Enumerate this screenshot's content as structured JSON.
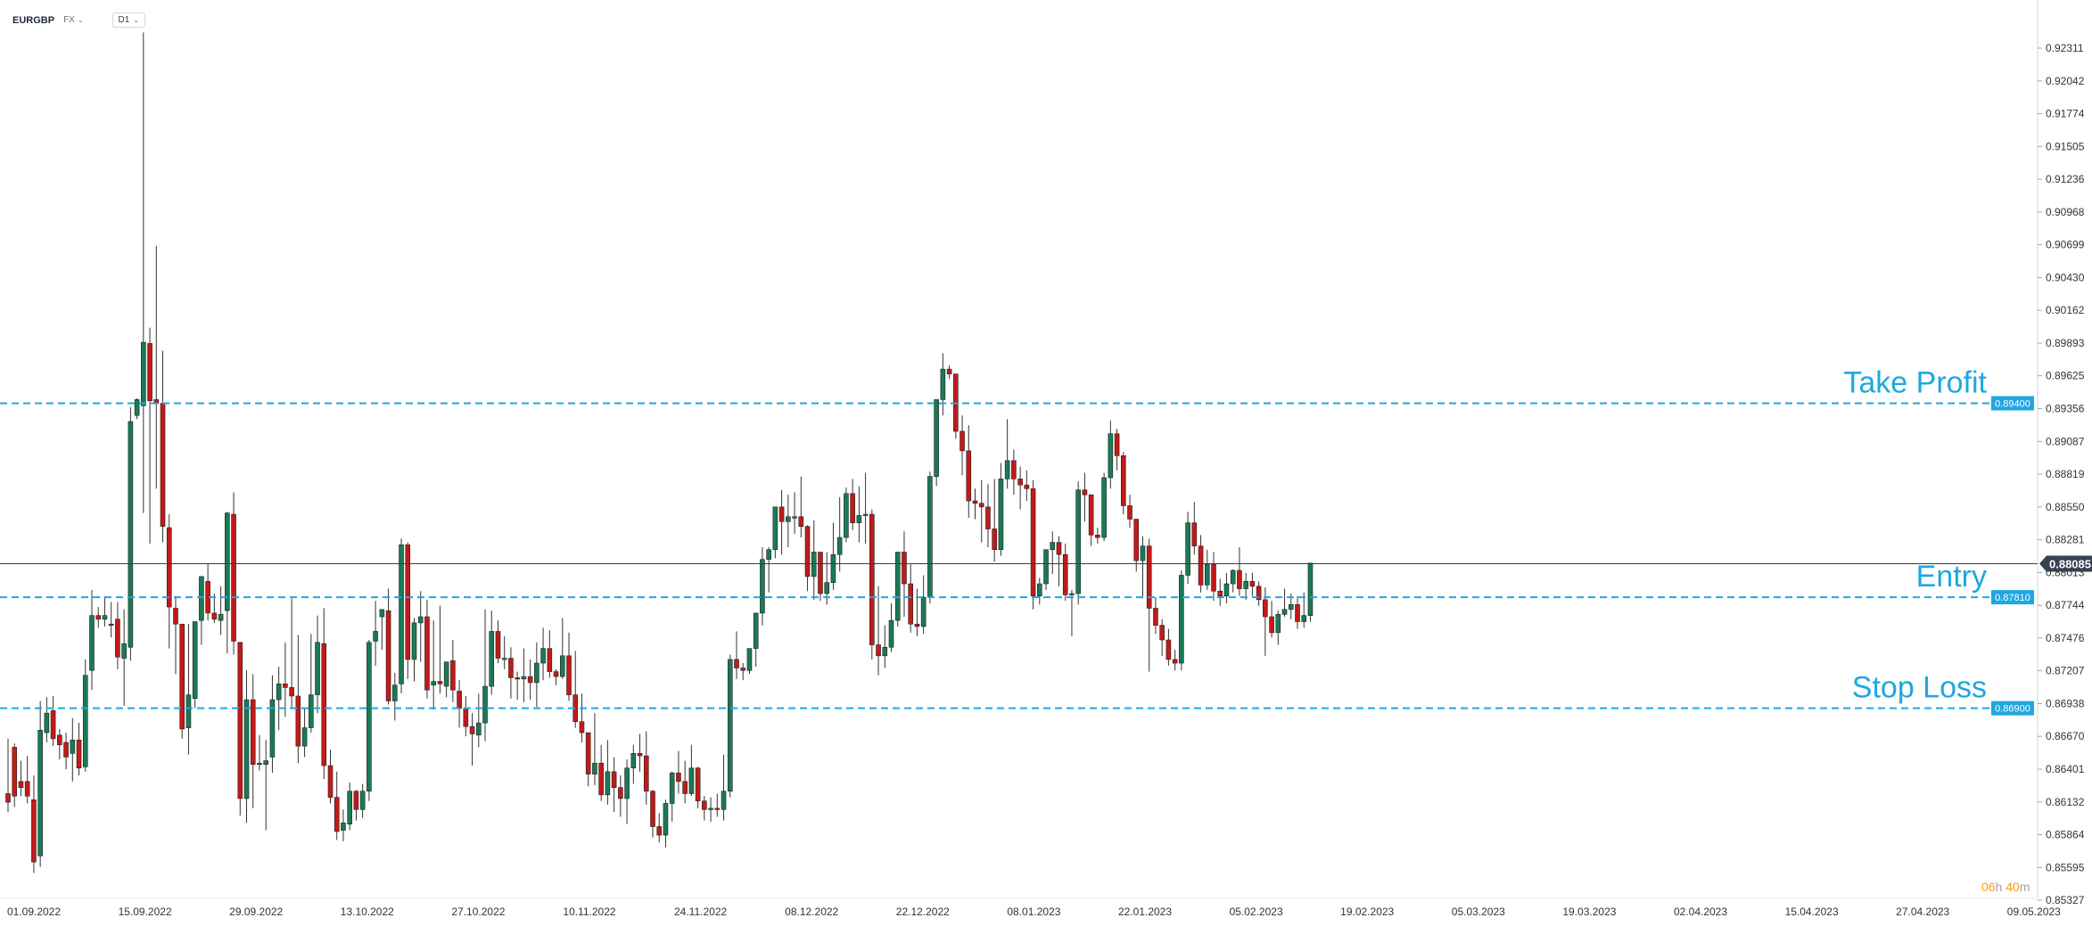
{
  "header": {
    "symbol": "EURGBP",
    "market": "FX",
    "timeframe": "D1"
  },
  "countdown": {
    "hours": "06",
    "hours_unit": "h",
    "minutes": "40",
    "minutes_unit": "m"
  },
  "colors": {
    "bull": "#1a7a55",
    "bear": "#c41919",
    "level_line": "#1ea7e1",
    "entry_line": "#3a3a3a"
  },
  "chart_data": {
    "type": "candlestick",
    "y_ticks": [
      "0.92311",
      "0.92042",
      "0.91774",
      "0.91505",
      "0.91236",
      "0.90968",
      "0.90699",
      "0.90430",
      "0.90162",
      "0.89893",
      "0.89625",
      "0.89356",
      "0.89087",
      "0.88819",
      "0.88550",
      "0.88281",
      "0.88013",
      "0.87744",
      "0.87476",
      "0.87207",
      "0.86938",
      "0.86670",
      "0.86401",
      "0.86132",
      "0.85864",
      "0.85595",
      "0.85327"
    ],
    "x_labels": [
      "01.09.2022",
      "15.09.2022",
      "29.09.2022",
      "13.10.2022",
      "27.10.2022",
      "10.11.2022",
      "24.11.2022",
      "08.12.2022",
      "22.12.2022",
      "08.01.2023",
      "22.01.2023",
      "05.02.2023",
      "19.02.2023",
      "05.03.2023",
      "19.03.2023",
      "02.04.2023",
      "15.04.2023",
      "27.04.2023",
      "09.05.2023"
    ],
    "last_price": "0.88085",
    "last_price_value": 0.88085,
    "levels": [
      {
        "name": "Take Profit",
        "value": 0.894,
        "label": "0.89400"
      },
      {
        "name": "Entry",
        "value": 0.8781,
        "label": "0.87810"
      },
      {
        "name": "Stop Loss",
        "value": 0.869,
        "label": "0.86900"
      }
    ],
    "candles": [
      [
        0.862,
        0.8665,
        0.8613,
        0.8605
      ],
      [
        0.8658,
        0.8661,
        0.8618,
        0.8609
      ],
      [
        0.863,
        0.8647,
        0.8625,
        0.8618
      ],
      [
        0.863,
        0.8651,
        0.8618,
        0.8612
      ],
      [
        0.8615,
        0.8635,
        0.8564,
        0.8555
      ],
      [
        0.8569,
        0.8696,
        0.8672,
        0.856
      ],
      [
        0.867,
        0.8699,
        0.8686,
        0.8662
      ],
      [
        0.8688,
        0.87,
        0.8665,
        0.8659
      ],
      [
        0.8668,
        0.8673,
        0.866,
        0.8648
      ],
      [
        0.8662,
        0.867,
        0.865,
        0.864
      ],
      [
        0.8653,
        0.8682,
        0.8664,
        0.863
      ],
      [
        0.8664,
        0.8678,
        0.8641,
        0.8635
      ],
      [
        0.8642,
        0.873,
        0.8717,
        0.8638
      ],
      [
        0.8721,
        0.8787,
        0.8766,
        0.8705
      ],
      [
        0.8766,
        0.8773,
        0.8763,
        0.8756
      ],
      [
        0.8763,
        0.8782,
        0.8766,
        0.8757
      ],
      [
        0.8759,
        0.8777,
        0.8758,
        0.8748
      ],
      [
        0.8763,
        0.8777,
        0.8732,
        0.8722
      ],
      [
        0.8731,
        0.8771,
        0.8743,
        0.8692
      ],
      [
        0.874,
        0.8937,
        0.8925,
        0.8729
      ],
      [
        0.893,
        0.8944,
        0.8943,
        0.8927
      ],
      [
        0.8938,
        0.9244,
        0.899,
        0.885
      ],
      [
        0.8989,
        0.9002,
        0.8942,
        0.8825
      ],
      [
        0.8943,
        0.9069,
        0.894,
        0.887
      ],
      [
        0.894,
        0.8983,
        0.8839,
        0.8826
      ],
      [
        0.8838,
        0.8849,
        0.8773,
        0.8739
      ],
      [
        0.8772,
        0.8782,
        0.8759,
        0.8718
      ],
      [
        0.8759,
        0.8752,
        0.8673,
        0.8665
      ],
      [
        0.8674,
        0.8759,
        0.8701,
        0.8652
      ],
      [
        0.8698,
        0.8738,
        0.8761,
        0.869
      ],
      [
        0.8762,
        0.8792,
        0.8798,
        0.8742
      ],
      [
        0.8794,
        0.8808,
        0.8768,
        0.8762
      ],
      [
        0.8768,
        0.8784,
        0.8763,
        0.876
      ],
      [
        0.8762,
        0.879,
        0.8767,
        0.875
      ],
      [
        0.877,
        0.8851,
        0.885,
        0.8735
      ],
      [
        0.8849,
        0.8867,
        0.8745,
        0.8734
      ],
      [
        0.8744,
        0.8734,
        0.8616,
        0.8602
      ],
      [
        0.8616,
        0.8721,
        0.8697,
        0.8596
      ],
      [
        0.8697,
        0.8718,
        0.8644,
        0.8608
      ],
      [
        0.8644,
        0.8668,
        0.8645,
        0.8639
      ],
      [
        0.8644,
        0.8664,
        0.8647,
        0.859
      ],
      [
        0.865,
        0.8717,
        0.8697,
        0.8637
      ],
      [
        0.8697,
        0.8724,
        0.871,
        0.8672
      ],
      [
        0.871,
        0.8744,
        0.8707,
        0.8683
      ],
      [
        0.8707,
        0.878,
        0.87,
        0.869
      ],
      [
        0.87,
        0.875,
        0.8659,
        0.8645
      ],
      [
        0.8659,
        0.869,
        0.8674,
        0.865
      ],
      [
        0.8674,
        0.8751,
        0.8701,
        0.867
      ],
      [
        0.8701,
        0.8766,
        0.8744,
        0.8686
      ],
      [
        0.8743,
        0.8772,
        0.8643,
        0.8632
      ],
      [
        0.8643,
        0.8656,
        0.8617,
        0.8612
      ],
      [
        0.8617,
        0.8638,
        0.8589,
        0.8582
      ],
      [
        0.859,
        0.8607,
        0.8596,
        0.8581
      ],
      [
        0.8595,
        0.8629,
        0.8622,
        0.859
      ],
      [
        0.8622,
        0.8623,
        0.8607,
        0.8598
      ],
      [
        0.8607,
        0.8628,
        0.8622,
        0.86
      ],
      [
        0.8622,
        0.8746,
        0.8744,
        0.8614
      ],
      [
        0.8745,
        0.8778,
        0.8753,
        0.8725
      ],
      [
        0.8765,
        0.8768,
        0.8771,
        0.8738
      ],
      [
        0.877,
        0.8788,
        0.8696,
        0.8693
      ],
      [
        0.8696,
        0.8719,
        0.8709,
        0.868
      ],
      [
        0.871,
        0.8829,
        0.8824,
        0.8702
      ],
      [
        0.8824,
        0.8826,
        0.873,
        0.8714
      ],
      [
        0.873,
        0.8764,
        0.876,
        0.8712
      ],
      [
        0.876,
        0.8786,
        0.8765,
        0.8728
      ],
      [
        0.8765,
        0.8779,
        0.8705,
        0.8698
      ],
      [
        0.8709,
        0.8762,
        0.8712,
        0.8689
      ],
      [
        0.8712,
        0.8774,
        0.871,
        0.8702
      ],
      [
        0.8708,
        0.8724,
        0.8728,
        0.8699
      ],
      [
        0.8729,
        0.8746,
        0.8705,
        0.8695
      ],
      [
        0.8704,
        0.8713,
        0.869,
        0.8674
      ],
      [
        0.869,
        0.87,
        0.8675,
        0.8667
      ],
      [
        0.8675,
        0.8686,
        0.8669,
        0.8643
      ],
      [
        0.8668,
        0.8702,
        0.8678,
        0.8658
      ],
      [
        0.8678,
        0.8771,
        0.8708,
        0.8663
      ],
      [
        0.8708,
        0.877,
        0.8753,
        0.8701
      ],
      [
        0.8753,
        0.8762,
        0.8731,
        0.8727
      ],
      [
        0.8731,
        0.8749,
        0.8731,
        0.8722
      ],
      [
        0.8731,
        0.874,
        0.8715,
        0.8698
      ],
      [
        0.8715,
        0.872,
        0.8714,
        0.8697
      ],
      [
        0.8714,
        0.8739,
        0.8716,
        0.8695
      ],
      [
        0.8716,
        0.873,
        0.8711,
        0.8697
      ],
      [
        0.8711,
        0.8744,
        0.8727,
        0.8691
      ],
      [
        0.8727,
        0.8756,
        0.8739,
        0.8713
      ],
      [
        0.8739,
        0.8754,
        0.872,
        0.8715
      ],
      [
        0.872,
        0.8722,
        0.8716,
        0.8709
      ],
      [
        0.8716,
        0.8764,
        0.8733,
        0.8714
      ],
      [
        0.8733,
        0.8752,
        0.8701,
        0.8696
      ],
      [
        0.8701,
        0.8737,
        0.8679,
        0.8674
      ],
      [
        0.8679,
        0.8702,
        0.867,
        0.8662
      ],
      [
        0.867,
        0.8665,
        0.8636,
        0.8626
      ],
      [
        0.8636,
        0.8686,
        0.8645,
        0.8627
      ],
      [
        0.8645,
        0.866,
        0.8619,
        0.8614
      ],
      [
        0.8619,
        0.8664,
        0.8638,
        0.8611
      ],
      [
        0.8638,
        0.865,
        0.8625,
        0.8605
      ],
      [
        0.8625,
        0.8635,
        0.8616,
        0.8601
      ],
      [
        0.8616,
        0.8648,
        0.8641,
        0.8595
      ],
      [
        0.8641,
        0.866,
        0.8653,
        0.8628
      ],
      [
        0.8653,
        0.8669,
        0.8651,
        0.8638
      ],
      [
        0.8651,
        0.8671,
        0.8622,
        0.8611
      ],
      [
        0.8622,
        0.8623,
        0.8593,
        0.8584
      ],
      [
        0.8593,
        0.8604,
        0.8586,
        0.858
      ],
      [
        0.8586,
        0.8615,
        0.8612,
        0.8576
      ],
      [
        0.8612,
        0.8638,
        0.8637,
        0.8597
      ],
      [
        0.8637,
        0.8655,
        0.863,
        0.862
      ],
      [
        0.863,
        0.8647,
        0.862,
        0.8612
      ],
      [
        0.862,
        0.866,
        0.8641,
        0.8618
      ],
      [
        0.8641,
        0.8642,
        0.8614,
        0.8608
      ],
      [
        0.8614,
        0.8618,
        0.8607,
        0.8598
      ],
      [
        0.8607,
        0.8617,
        0.8608,
        0.8597
      ],
      [
        0.8608,
        0.862,
        0.8607,
        0.8601
      ],
      [
        0.8607,
        0.8652,
        0.8622,
        0.8598
      ],
      [
        0.8622,
        0.8734,
        0.873,
        0.8617
      ],
      [
        0.873,
        0.8753,
        0.8723,
        0.8714
      ],
      [
        0.8723,
        0.8727,
        0.8721,
        0.8713
      ],
      [
        0.8721,
        0.8739,
        0.8739,
        0.8718
      ],
      [
        0.8739,
        0.8763,
        0.8768,
        0.8724
      ],
      [
        0.8768,
        0.8822,
        0.8812,
        0.8758
      ],
      [
        0.8812,
        0.8822,
        0.882,
        0.8785
      ],
      [
        0.882,
        0.8854,
        0.8855,
        0.8813
      ],
      [
        0.8855,
        0.8869,
        0.8843,
        0.8816
      ],
      [
        0.8843,
        0.8865,
        0.8847,
        0.8822
      ],
      [
        0.8847,
        0.8867,
        0.8847,
        0.8833
      ],
      [
        0.8847,
        0.888,
        0.8839,
        0.883
      ],
      [
        0.8839,
        0.884,
        0.8798,
        0.8786
      ],
      [
        0.8798,
        0.8844,
        0.8818,
        0.8779
      ],
      [
        0.8818,
        0.8812,
        0.8784,
        0.8778
      ],
      [
        0.8784,
        0.8818,
        0.8793,
        0.8775
      ],
      [
        0.8793,
        0.8842,
        0.8816,
        0.8787
      ],
      [
        0.8816,
        0.8863,
        0.883,
        0.8802
      ],
      [
        0.883,
        0.8871,
        0.8866,
        0.8826
      ],
      [
        0.8866,
        0.8878,
        0.8842,
        0.8836
      ],
      [
        0.8842,
        0.8872,
        0.8848,
        0.8826
      ],
      [
        0.8848,
        0.8883,
        0.8849,
        0.8825
      ],
      [
        0.8849,
        0.8853,
        0.8742,
        0.873
      ],
      [
        0.8742,
        0.879,
        0.8733,
        0.8717
      ],
      [
        0.8733,
        0.8758,
        0.874,
        0.8723
      ],
      [
        0.874,
        0.8776,
        0.8762,
        0.8736
      ],
      [
        0.8762,
        0.8812,
        0.8818,
        0.8757
      ],
      [
        0.8818,
        0.8835,
        0.8792,
        0.8765
      ],
      [
        0.8792,
        0.8808,
        0.8759,
        0.8752
      ],
      [
        0.8759,
        0.8788,
        0.8757,
        0.8749
      ],
      [
        0.8757,
        0.8799,
        0.8781,
        0.8751
      ],
      [
        0.8781,
        0.8884,
        0.888,
        0.8776
      ],
      [
        0.888,
        0.8934,
        0.8943,
        0.8872
      ],
      [
        0.8943,
        0.8981,
        0.8968,
        0.893
      ],
      [
        0.8968,
        0.8971,
        0.8964,
        0.896
      ],
      [
        0.8964,
        0.8959,
        0.8917,
        0.8911
      ],
      [
        0.8917,
        0.893,
        0.8901,
        0.8881
      ],
      [
        0.8901,
        0.8922,
        0.886,
        0.8846
      ],
      [
        0.886,
        0.887,
        0.8858,
        0.8845
      ],
      [
        0.8858,
        0.8877,
        0.8855,
        0.8826
      ],
      [
        0.8855,
        0.8874,
        0.8837,
        0.8822
      ],
      [
        0.8837,
        0.8878,
        0.882,
        0.881
      ],
      [
        0.882,
        0.8891,
        0.8878,
        0.8815
      ],
      [
        0.8878,
        0.8927,
        0.8893,
        0.887
      ],
      [
        0.8893,
        0.8902,
        0.8878,
        0.8865
      ],
      [
        0.8878,
        0.8888,
        0.8873,
        0.8853
      ],
      [
        0.8873,
        0.8885,
        0.887,
        0.886
      ],
      [
        0.887,
        0.8877,
        0.8782,
        0.8771
      ],
      [
        0.8782,
        0.8797,
        0.8792,
        0.8775
      ],
      [
        0.8792,
        0.881,
        0.882,
        0.8787
      ],
      [
        0.882,
        0.8835,
        0.8826,
        0.88
      ],
      [
        0.8826,
        0.8831,
        0.8816,
        0.879
      ],
      [
        0.8816,
        0.8825,
        0.8783,
        0.8778
      ],
      [
        0.8783,
        0.8787,
        0.8784,
        0.8749
      ],
      [
        0.8784,
        0.8876,
        0.8869,
        0.8775
      ],
      [
        0.8869,
        0.8883,
        0.8865,
        0.8843
      ],
      [
        0.8865,
        0.8862,
        0.8832,
        0.8823
      ],
      [
        0.8832,
        0.8838,
        0.883,
        0.8825
      ],
      [
        0.883,
        0.8883,
        0.8879,
        0.8827
      ],
      [
        0.8879,
        0.8926,
        0.8915,
        0.887
      ],
      [
        0.8915,
        0.8919,
        0.8897,
        0.8885
      ],
      [
        0.8897,
        0.89,
        0.8856,
        0.8849
      ],
      [
        0.8856,
        0.8865,
        0.8845,
        0.8838
      ],
      [
        0.8845,
        0.8842,
        0.8811,
        0.8802
      ],
      [
        0.8811,
        0.8831,
        0.8823,
        0.878
      ],
      [
        0.8823,
        0.8829,
        0.8772,
        0.872
      ],
      [
        0.8772,
        0.8781,
        0.8758,
        0.8751
      ],
      [
        0.8758,
        0.8763,
        0.8746,
        0.8733
      ],
      [
        0.8746,
        0.8755,
        0.873,
        0.8725
      ],
      [
        0.873,
        0.8738,
        0.8727,
        0.8721
      ],
      [
        0.8727,
        0.8803,
        0.8799,
        0.8721
      ],
      [
        0.8799,
        0.8851,
        0.8842,
        0.8792
      ],
      [
        0.8842,
        0.8859,
        0.8823,
        0.8816
      ],
      [
        0.8823,
        0.8832,
        0.8791,
        0.8785
      ],
      [
        0.8791,
        0.882,
        0.8808,
        0.8787
      ],
      [
        0.8808,
        0.8818,
        0.8786,
        0.8778
      ],
      [
        0.8786,
        0.8796,
        0.8782,
        0.8774
      ],
      [
        0.8782,
        0.8801,
        0.8792,
        0.8776
      ],
      [
        0.8792,
        0.8804,
        0.8803,
        0.8785
      ],
      [
        0.8803,
        0.8822,
        0.8788,
        0.8782
      ],
      [
        0.8788,
        0.8801,
        0.8794,
        0.8779
      ],
      [
        0.8794,
        0.8801,
        0.879,
        0.8782
      ],
      [
        0.879,
        0.8794,
        0.8779,
        0.8774
      ],
      [
        0.8779,
        0.8789,
        0.8765,
        0.8733
      ],
      [
        0.8765,
        0.8778,
        0.8752,
        0.8748
      ],
      [
        0.8752,
        0.877,
        0.8767,
        0.8742
      ],
      [
        0.8767,
        0.8788,
        0.8771,
        0.8765
      ],
      [
        0.8771,
        0.8784,
        0.8775,
        0.8763
      ],
      [
        0.8775,
        0.8782,
        0.8761,
        0.8755
      ],
      [
        0.8761,
        0.8785,
        0.8766,
        0.8756
      ],
      [
        0.8766,
        0.8798,
        0.8809,
        0.8761
      ]
    ]
  }
}
